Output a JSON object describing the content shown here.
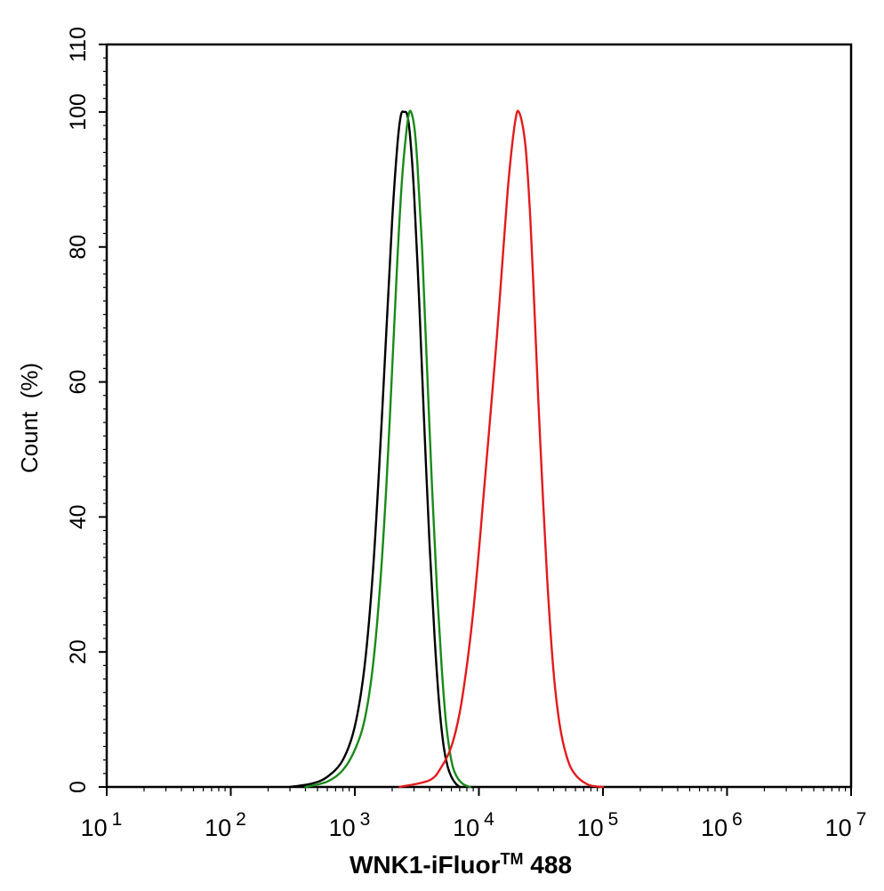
{
  "chart_data": {
    "type": "line",
    "title": "",
    "xlabel": "WNK1-iFluor™ 488",
    "xlabel_parts": {
      "main": "WNK1-iFluor",
      "sup": "TM",
      "rest": " 488"
    },
    "ylabel": "Count  (%)",
    "x_scale": "log",
    "xlim": [
      10,
      10000000
    ],
    "ylim": [
      0,
      110
    ],
    "x_ticks": [
      {
        "base": "10",
        "exp": "1",
        "value": 10
      },
      {
        "base": "10",
        "exp": "2",
        "value": 100
      },
      {
        "base": "10",
        "exp": "3",
        "value": 1000
      },
      {
        "base": "10",
        "exp": "4",
        "value": 10000
      },
      {
        "base": "10",
        "exp": "5",
        "value": 100000
      },
      {
        "base": "10",
        "exp": "6",
        "value": 1000000
      },
      {
        "base": "10",
        "exp": "7",
        "value": 10000000
      }
    ],
    "y_ticks": [
      "0",
      "20",
      "40",
      "60",
      "80",
      "100",
      "110"
    ],
    "grid": false,
    "legend": "none",
    "series": [
      {
        "color": "#000000",
        "x": [
          300,
          450,
          600,
          800,
          1000,
          1200,
          1400,
          1600,
          1800,
          2000,
          2200,
          2350,
          2500,
          2650,
          2800,
          3000,
          3300,
          3600,
          4000,
          4400,
          4800,
          5200,
          5600,
          6000,
          6500,
          7000
        ],
        "y": [
          0,
          0.5,
          1.5,
          4,
          9,
          18,
          32,
          50,
          68,
          84,
          95,
          99.5,
          100,
          99.5,
          96,
          88,
          72,
          55,
          36,
          22,
          12,
          6,
          3,
          1.5,
          0.5,
          0
        ]
      },
      {
        "color": "#1a8a1a",
        "x": [
          400,
          600,
          800,
          1000,
          1200,
          1400,
          1600,
          1800,
          2000,
          2200,
          2400,
          2600,
          2750,
          2900,
          3050,
          3200,
          3500,
          3800,
          4200,
          4600,
          5000,
          5400,
          5800,
          6200,
          6800,
          7500,
          8500
        ],
        "y": [
          0,
          0.8,
          2.5,
          5.5,
          10,
          18,
          30,
          45,
          62,
          78,
          90,
          97,
          100,
          99.5,
          97,
          92,
          79,
          63,
          44,
          29,
          18,
          10,
          5.5,
          2.8,
          1.2,
          0.4,
          0
        ]
      },
      {
        "color": "#e31a1c",
        "x": [
          2300,
          4000,
          5000,
          6000,
          7000,
          8000,
          9000,
          10000,
          11000,
          12500,
          14000,
          15500,
          17000,
          18500,
          20000,
          21000,
          22500,
          24000,
          26000,
          28000,
          30000,
          33000,
          36000,
          40000,
          45000,
          52000,
          60000,
          70000,
          80000,
          100000
        ],
        "y": [
          0,
          1,
          3,
          6,
          11,
          18,
          26,
          35,
          44,
          56,
          67,
          78,
          88,
          95,
          99.5,
          100,
          98,
          94,
          84,
          71,
          58,
          42,
          29,
          17,
          9,
          4,
          1.8,
          0.7,
          0.2,
          0
        ]
      }
    ]
  }
}
